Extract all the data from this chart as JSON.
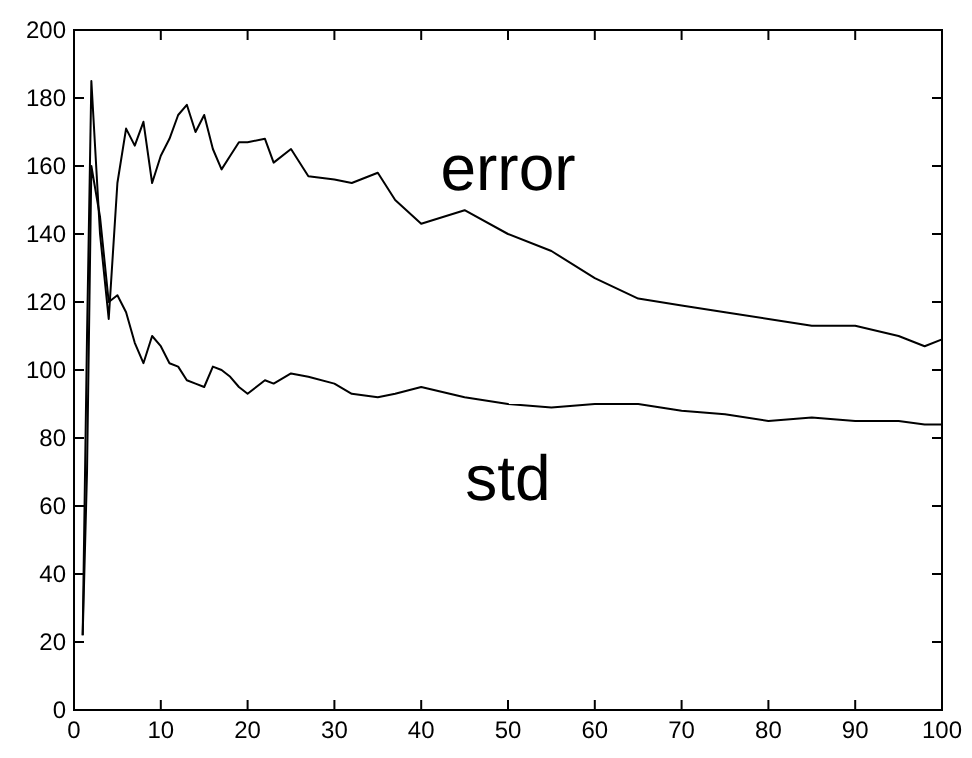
{
  "chart_data": {
    "type": "line",
    "xlim": [
      0,
      100
    ],
    "ylim": [
      0,
      200
    ],
    "xticks": [
      0,
      10,
      20,
      30,
      40,
      50,
      60,
      70,
      80,
      90,
      100
    ],
    "yticks": [
      0,
      20,
      40,
      60,
      80,
      100,
      120,
      140,
      160,
      180,
      200
    ],
    "grid": false,
    "legend": false,
    "marker": "none",
    "line_style": "solid",
    "series": [
      {
        "name": "error",
        "color": "#000000",
        "x": [
          1,
          1.5,
          2,
          3,
          4,
          5,
          6,
          7,
          8,
          9,
          10,
          11,
          12,
          13,
          14,
          15,
          16,
          17,
          18,
          19,
          20,
          22,
          23,
          25,
          27,
          30,
          32,
          35,
          37,
          40,
          45,
          50,
          55,
          60,
          65,
          70,
          75,
          80,
          85,
          90,
          95,
          98,
          100
        ],
        "values": [
          22,
          110,
          185,
          140,
          115,
          155,
          171,
          166,
          173,
          155,
          163,
          168,
          175,
          178,
          170,
          175,
          165,
          159,
          163,
          167,
          167,
          168,
          161,
          165,
          157,
          156,
          155,
          158,
          150,
          143,
          147,
          140,
          135,
          127,
          121,
          119,
          117,
          115,
          113,
          113,
          110,
          107,
          109
        ]
      },
      {
        "name": "std",
        "color": "#000000",
        "x": [
          1,
          1.5,
          2,
          3,
          4,
          5,
          6,
          7,
          8,
          9,
          10,
          11,
          12,
          13,
          14,
          15,
          16,
          17,
          18,
          19,
          20,
          22,
          23,
          25,
          27,
          30,
          32,
          35,
          37,
          40,
          45,
          50,
          55,
          60,
          65,
          70,
          75,
          80,
          85,
          90,
          95,
          98,
          100
        ],
        "values": [
          22,
          70,
          160,
          145,
          120,
          122,
          117,
          108,
          102,
          110,
          107,
          102,
          101,
          97,
          96,
          95,
          101,
          100,
          98,
          95,
          93,
          97,
          96,
          99,
          98,
          96,
          93,
          92,
          93,
          95,
          92,
          90,
          89,
          90,
          90,
          88,
          87,
          85,
          86,
          85,
          85,
          84,
          84
        ]
      }
    ]
  }
}
